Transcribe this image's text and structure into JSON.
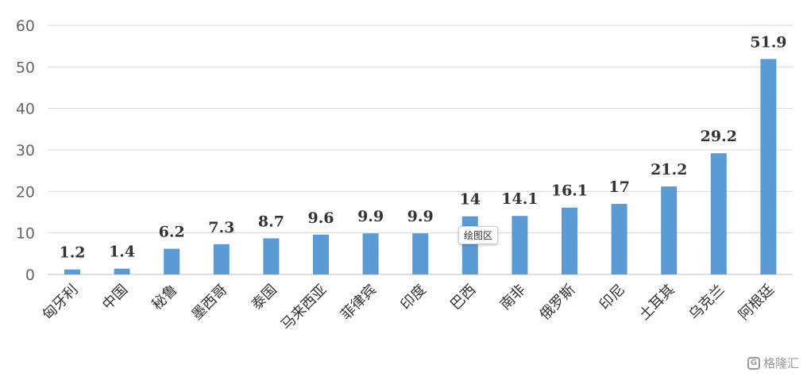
{
  "chart_data": {
    "type": "bar",
    "categories": [
      "匈牙利",
      "中国",
      "秘鲁",
      "墨西哥",
      "泰国",
      "马来西亚",
      "菲律宾",
      "印度",
      "巴西",
      "南非",
      "俄罗斯",
      "印尼",
      "土耳其",
      "乌克兰",
      "阿根廷"
    ],
    "values": [
      1.2,
      1.4,
      6.2,
      7.3,
      8.7,
      9.6,
      9.9,
      9.9,
      14,
      14.1,
      16.1,
      17,
      21.2,
      29.2,
      51.9
    ],
    "value_labels": [
      "1.2",
      "1.4",
      "6.2",
      "7.3",
      "8.7",
      "9.6",
      "9.9",
      "9.9",
      "14",
      "14.1",
      "16.1",
      "17",
      "21.2",
      "29.2",
      "51.9"
    ],
    "yticks": [
      "0",
      "10",
      "20",
      "30",
      "40",
      "50",
      "60"
    ],
    "ylim": [
      0,
      60
    ],
    "grid": true,
    "bar_color": "#5B9BD5",
    "legend": "none"
  },
  "tooltip": {
    "text": "绘图区"
  },
  "watermark": {
    "text": "格隆汇",
    "icon": "gelonghui-logo-icon"
  }
}
